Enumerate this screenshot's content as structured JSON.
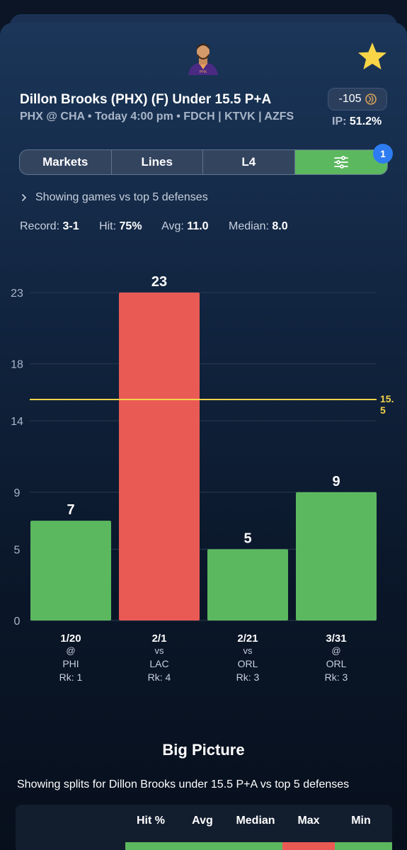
{
  "player": {
    "title": "Dillon Brooks (PHX) (F) Under 15.5 P+A",
    "subtitle": "PHX @ CHA • Today 4:00 pm • FDCH | KTVK | AZFS",
    "odds": "-105",
    "ip_label": "IP:",
    "ip_value": "51.2%"
  },
  "icons": {
    "avatar": "player-headshot",
    "favorite": "star-icon",
    "book": "sportsbook-logo-icon",
    "filter": "sliders-icon",
    "chevron": "chevron-right-icon"
  },
  "tabs": [
    {
      "label": "Markets"
    },
    {
      "label": "Lines"
    },
    {
      "label": "L4"
    }
  ],
  "filter_badge": "1",
  "filter_text": "Showing games vs top 5 defenses",
  "stats": {
    "record_label": "Record:",
    "record": "3-1",
    "hit_label": "Hit:",
    "hit": "75%",
    "avg_label": "Avg:",
    "avg": "11.0",
    "median_label": "Median:",
    "median": "8.0"
  },
  "colors": {
    "under_hit": "#5cb85f",
    "over_miss": "#ea5a55",
    "line": "#f3d34a",
    "accent_blue": "#2d7cf2",
    "star": "#f7d547"
  },
  "chart_data": {
    "type": "bar",
    "y_ticks": [
      0,
      5,
      9,
      14,
      18,
      23
    ],
    "ylim": [
      0,
      23
    ],
    "line_value": 15.5,
    "line_label_lines": [
      "15.",
      "5"
    ],
    "bars": [
      {
        "value": 7,
        "label": "7",
        "date": "1/20",
        "venue": "@",
        "opp": "PHI",
        "rank": "Rk: 1",
        "result": "hit"
      },
      {
        "value": 23,
        "label": "23",
        "date": "2/1",
        "venue": "vs",
        "opp": "LAC",
        "rank": "Rk: 4",
        "result": "miss"
      },
      {
        "value": 5,
        "label": "5",
        "date": "2/21",
        "venue": "vs",
        "opp": "ORL",
        "rank": "Rk: 3",
        "result": "hit"
      },
      {
        "value": 9,
        "label": "9",
        "date": "3/31",
        "venue": "@",
        "opp": "ORL",
        "rank": "Rk: 3",
        "result": "hit"
      }
    ],
    "grid": true
  },
  "big_picture": {
    "title": "Big Picture",
    "subtitle": "Showing splits for Dillon Brooks under 15.5 P+A vs top 5 defenses",
    "columns": [
      "Hit %",
      "Avg",
      "Median",
      "Max",
      "Min"
    ]
  }
}
